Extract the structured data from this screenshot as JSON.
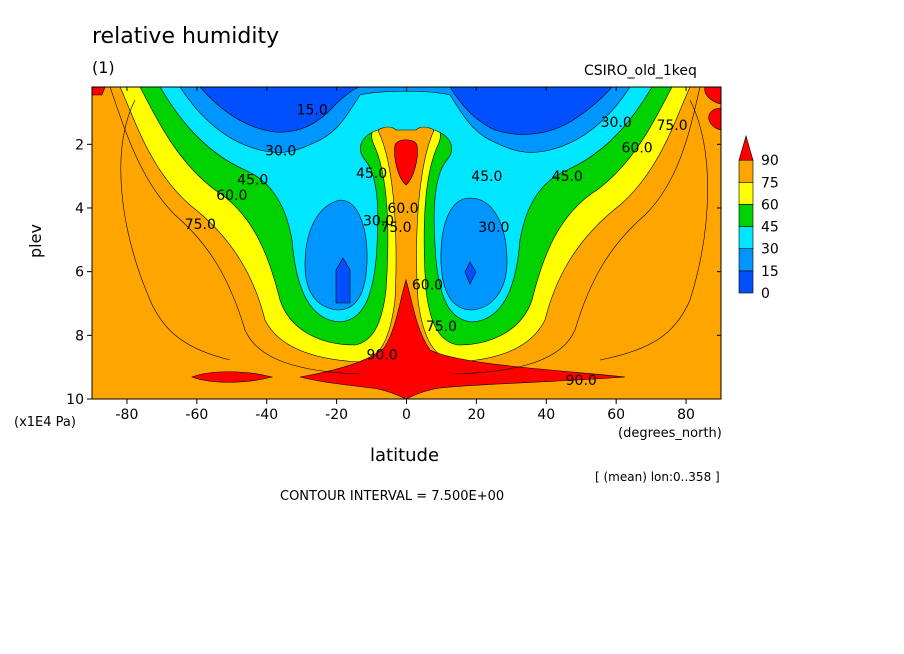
{
  "chart_data": {
    "type": "heatmap",
    "title": "relative humidity",
    "subtitle": "(1)",
    "model_label": "CSIRO_old_1keq",
    "xlabel": "latitude",
    "xunits": "(degrees_north)",
    "ylabel": "plev",
    "yunits": "(x1E4 Pa)",
    "xlim": [
      -90,
      90
    ],
    "ylim": [
      10,
      0.2
    ],
    "xticks": [
      -80,
      -60,
      -40,
      -20,
      0,
      20,
      40,
      60,
      80
    ],
    "yticks": [
      2,
      4,
      6,
      8,
      10
    ],
    "colorbar": {
      "levels": [
        0,
        15,
        30,
        45,
        60,
        75,
        90
      ],
      "colors": [
        "#0050ff",
        "#0096ff",
        "#00e6ff",
        "#00d200",
        "#ffff00",
        "#ffa500",
        "#ff0000"
      ],
      "extend": "max"
    },
    "contour_labels": [
      {
        "text": "15.0",
        "lat": -27,
        "plev": 0.9
      },
      {
        "text": "30.0",
        "lat": -36,
        "plev": 2.2
      },
      {
        "text": "45.0",
        "lat": -44,
        "plev": 3.1
      },
      {
        "text": "60.0",
        "lat": -50,
        "plev": 3.6
      },
      {
        "text": "75.0",
        "lat": -59,
        "plev": 4.5
      },
      {
        "text": "45.0",
        "lat": -10,
        "plev": 2.9
      },
      {
        "text": "30.0",
        "lat": -8,
        "plev": 4.4
      },
      {
        "text": "75.0",
        "lat": -3,
        "plev": 4.6
      },
      {
        "text": "60.0",
        "lat": -1,
        "plev": 4.0
      },
      {
        "text": "45.0",
        "lat": 23,
        "plev": 3.0
      },
      {
        "text": "30.0",
        "lat": 25,
        "plev": 4.6
      },
      {
        "text": "60.0",
        "lat": 6,
        "plev": 6.4
      },
      {
        "text": "75.0",
        "lat": 10,
        "plev": 7.7
      },
      {
        "text": "90.0",
        "lat": -7,
        "plev": 8.6
      },
      {
        "text": "90.0",
        "lat": 50,
        "plev": 9.4
      },
      {
        "text": "45.0",
        "lat": 46,
        "plev": 3.0
      },
      {
        "text": "30.0",
        "lat": 60,
        "plev": 1.3
      },
      {
        "text": "60.0",
        "lat": 66,
        "plev": 2.1
      },
      {
        "text": "75.0",
        "lat": 76,
        "plev": 1.4
      }
    ],
    "mean_label": "[ (mean) lon:0..358 ]",
    "contour_interval_label": "CONTOUR INTERVAL = 7.500E+00"
  }
}
